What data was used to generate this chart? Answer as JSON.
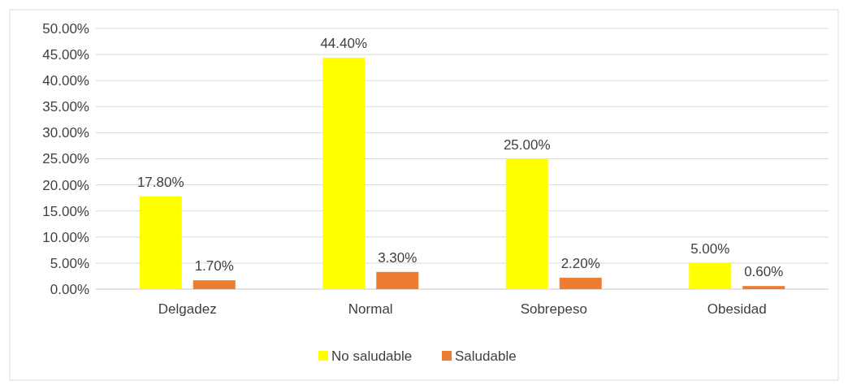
{
  "chart_data": {
    "type": "bar",
    "categories": [
      "Delgadez",
      "Normal",
      "Sobrepeso",
      "Obesidad"
    ],
    "series": [
      {
        "name": "No saludable",
        "color": "#ffff00",
        "values": [
          17.8,
          44.4,
          25.0,
          5.0
        ],
        "value_labels": [
          "17.80%",
          "44.40%",
          "25.00%",
          "5.00%"
        ]
      },
      {
        "name": "Saludable",
        "color": "#ed7d31",
        "values": [
          1.7,
          3.3,
          2.2,
          0.6
        ],
        "value_labels": [
          "1.70%",
          "3.30%",
          "2.20%",
          "0.60%"
        ]
      }
    ],
    "ylim": [
      0,
      50
    ],
    "yticks": [
      {
        "value": 0,
        "label": "0.00%"
      },
      {
        "value": 5,
        "label": "5.00%"
      },
      {
        "value": 10,
        "label": "10.00%"
      },
      {
        "value": 15,
        "label": "15.00%"
      },
      {
        "value": 20,
        "label": "20.00%"
      },
      {
        "value": 25,
        "label": "25.00%"
      },
      {
        "value": 30,
        "label": "30.00%"
      },
      {
        "value": 35,
        "label": "35.00%"
      },
      {
        "value": 40,
        "label": "40.00%"
      },
      {
        "value": 45,
        "label": "45.00%"
      },
      {
        "value": 50,
        "label": "50.00%"
      }
    ],
    "grid": "y",
    "legend": "bottom"
  }
}
